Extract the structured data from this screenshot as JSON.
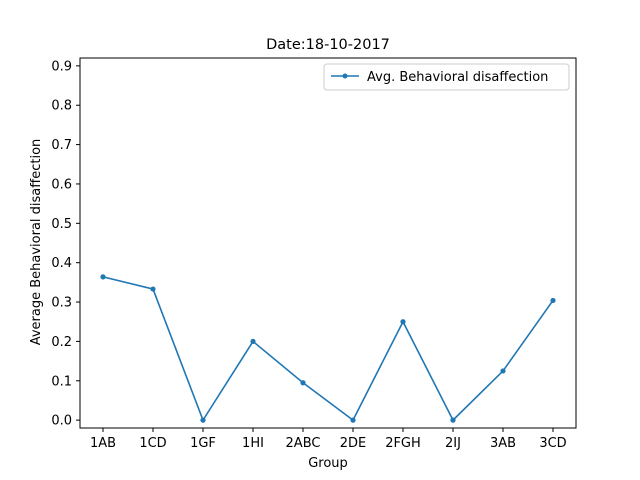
{
  "chart_data": {
    "type": "line",
    "title": "Date:18-10-2017",
    "xlabel": "Group",
    "ylabel": "Average Behavioral disaffection",
    "categories": [
      "1AB",
      "1CD",
      "1GF",
      "1HI",
      "2ABC",
      "2DE",
      "2FGH",
      "2IJ",
      "3AB",
      "3CD"
    ],
    "series": [
      {
        "name": "Avg. Behavioral disaffection",
        "values": [
          0.364,
          0.333,
          0.0,
          0.2,
          0.095,
          0.0,
          0.25,
          0.0,
          0.125,
          0.304
        ],
        "color": "#1f77b4"
      }
    ],
    "ylim": [
      0,
      0.9
    ],
    "yticks": [
      "0.0",
      "0.1",
      "0.2",
      "0.3",
      "0.4",
      "0.5",
      "0.6",
      "0.7",
      "0.8",
      "0.9"
    ],
    "grid": false,
    "legend": "top-right"
  }
}
